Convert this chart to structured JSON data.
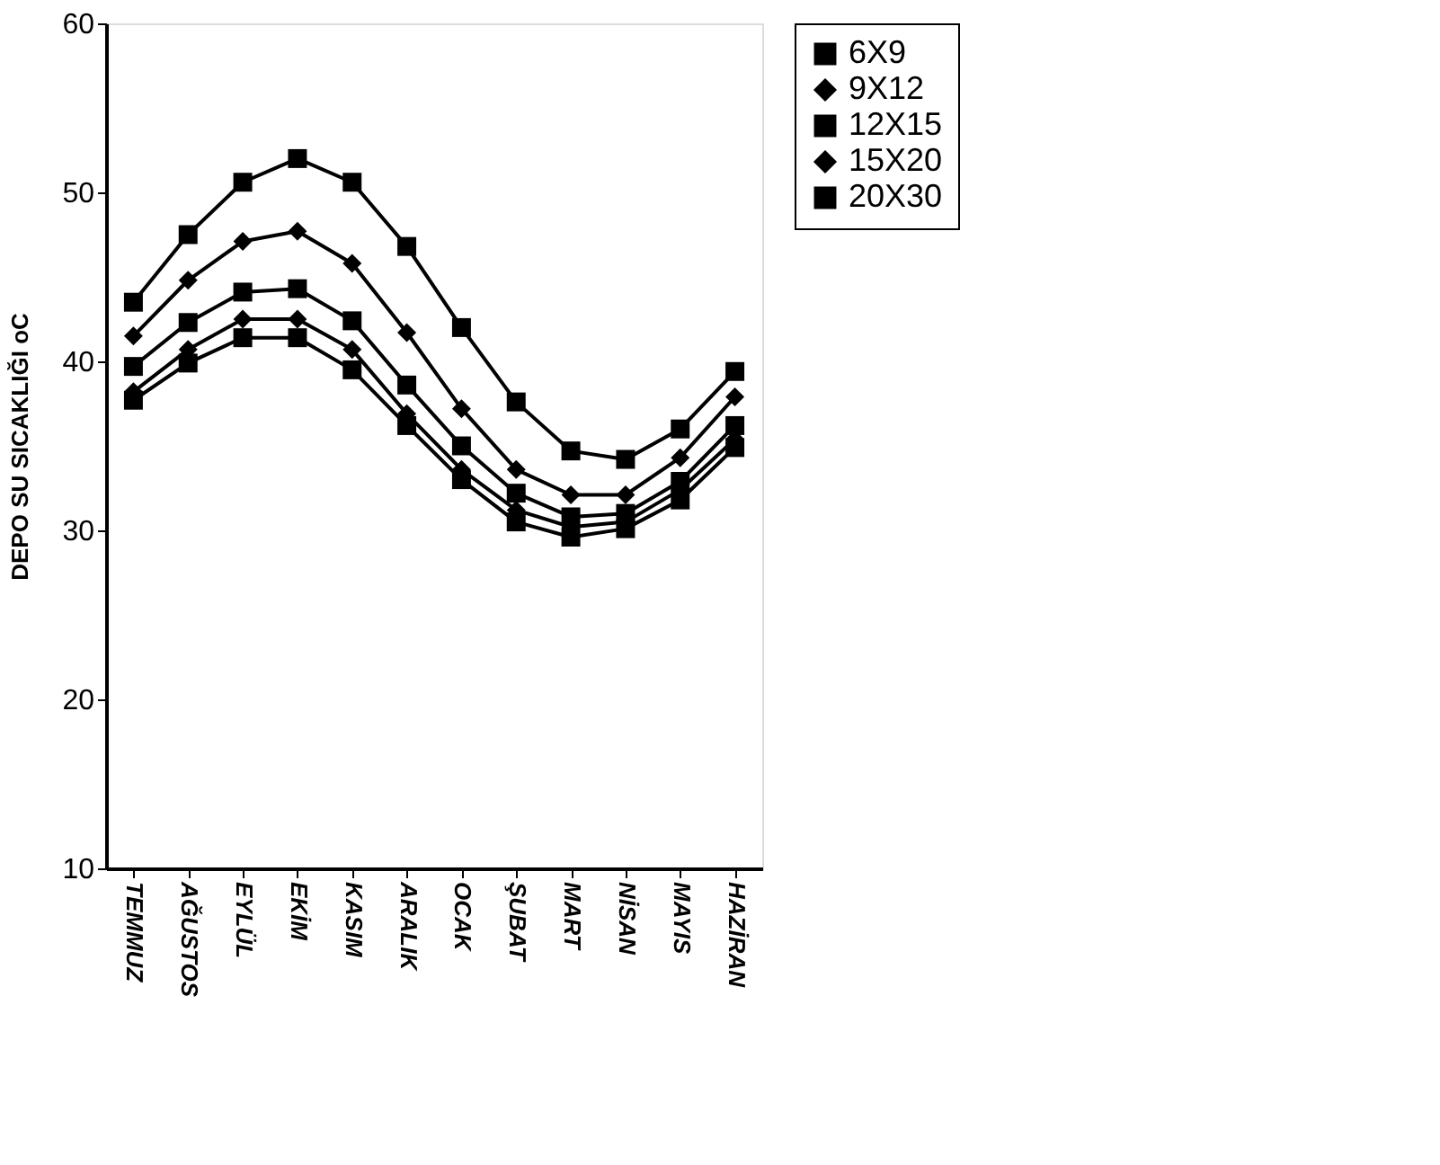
{
  "chart_data": {
    "type": "line",
    "ylabel": "DEPO SU SICAKLIĞI oC",
    "categories": [
      "TEMMUZ",
      "AĞUSTOS",
      "EYLÜL",
      "EKİM",
      "KASIM",
      "ARALIK",
      "OCAK",
      "ŞUBAT",
      "MART",
      "NİSAN",
      "MAYIS",
      "HAZİRAN"
    ],
    "series": [
      {
        "name": "6X9",
        "color": "#000000",
        "marker": "square",
        "values": [
          43.5,
          47.5,
          50.6,
          52,
          50.6,
          46.8,
          42,
          37.6,
          34.7,
          34.2,
          36,
          39.4
        ]
      },
      {
        "name": "9X12",
        "color": "#000000",
        "marker": "diamond",
        "values": [
          41.5,
          44.8,
          47.1,
          47.7,
          45.8,
          41.7,
          37.2,
          33.6,
          32.1,
          32.1,
          34.3,
          37.9
        ]
      },
      {
        "name": "12X15",
        "color": "#000000",
        "marker": "square",
        "values": [
          39.7,
          42.3,
          44.1,
          44.3,
          42.4,
          38.6,
          35,
          32.2,
          30.8,
          31,
          32.9,
          36.2
        ]
      },
      {
        "name": "15X20",
        "color": "#000000",
        "marker": "diamond",
        "values": [
          38.2,
          40.7,
          42.5,
          42.5,
          40.7,
          36.9,
          33.6,
          31.2,
          30.2,
          30.5,
          32.4,
          35.4
        ]
      },
      {
        "name": "20X30",
        "color": "#000000",
        "marker": "square",
        "values": [
          37.7,
          39.9,
          41.4,
          41.4,
          39.5,
          36.2,
          33,
          30.5,
          29.6,
          30.1,
          31.8,
          34.9
        ]
      }
    ],
    "ylim": [
      10,
      60
    ],
    "yticks": [
      10,
      20,
      30,
      40,
      50,
      60
    ],
    "grid": false,
    "legend": "right",
    "line_style": "solid"
  }
}
